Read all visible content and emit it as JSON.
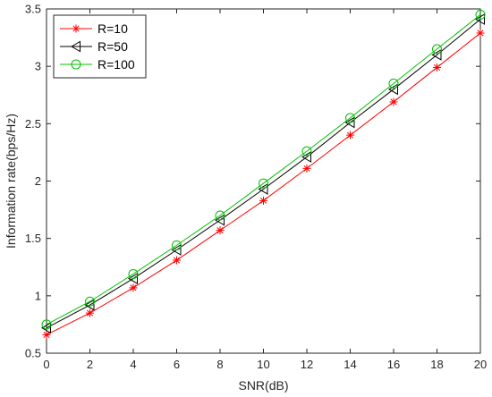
{
  "chart_data": {
    "type": "line",
    "xlabel": "SNR(dB)",
    "ylabel": "Information rate(bps/Hz)",
    "xlim": [
      0,
      20
    ],
    "ylim": [
      0.5,
      3.5
    ],
    "x_ticks": [
      "0",
      "2",
      "4",
      "6",
      "8",
      "10",
      "12",
      "14",
      "16",
      "18",
      "20"
    ],
    "y_ticks": [
      "0.5",
      "1",
      "1.5",
      "2",
      "2.5",
      "3",
      "3.5"
    ],
    "grid": false,
    "legend_position": "top-left",
    "x": [
      0,
      2,
      4,
      6,
      8,
      10,
      12,
      14,
      16,
      18,
      20
    ],
    "series": [
      {
        "name": "R=10",
        "color": "#ff0000",
        "marker": "asterisk",
        "values": [
          0.66,
          0.85,
          1.07,
          1.31,
          1.57,
          1.83,
          2.11,
          2.4,
          2.69,
          2.99,
          3.29
        ]
      },
      {
        "name": "R=50",
        "color": "#000000",
        "marker": "left-triangle",
        "values": [
          0.72,
          0.92,
          1.15,
          1.4,
          1.66,
          1.93,
          2.21,
          2.51,
          2.8,
          3.1,
          3.41
        ]
      },
      {
        "name": "R=100",
        "color": "#00c000",
        "marker": "circle",
        "values": [
          0.75,
          0.95,
          1.19,
          1.44,
          1.7,
          1.98,
          2.26,
          2.55,
          2.85,
          3.15,
          3.45
        ]
      }
    ]
  }
}
